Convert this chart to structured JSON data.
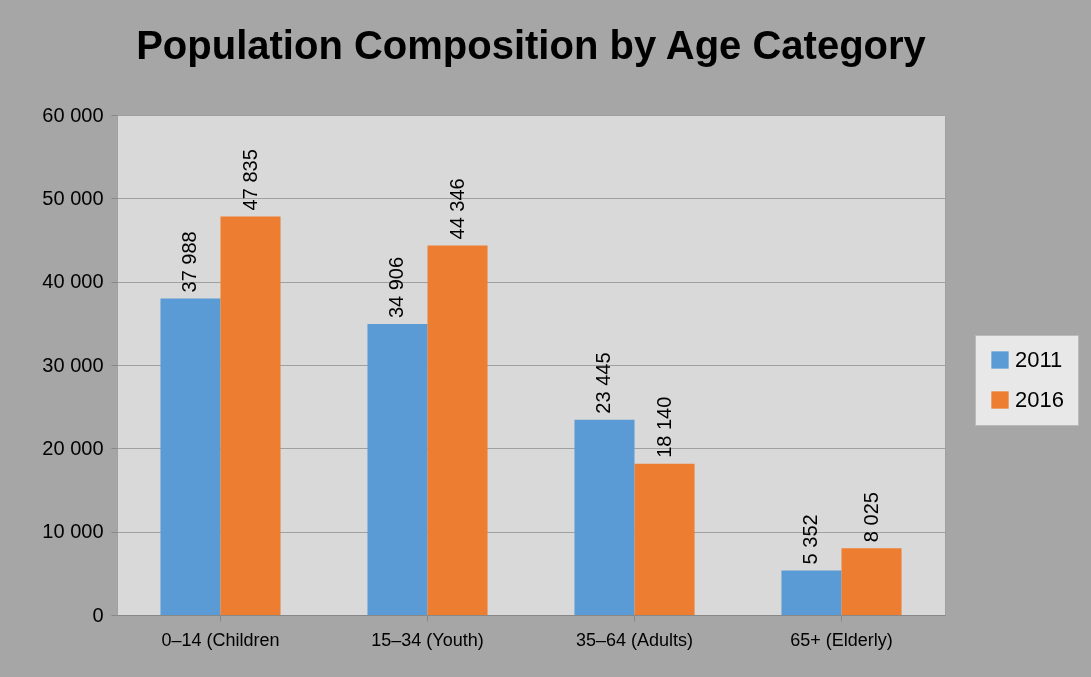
{
  "chart_data": {
    "type": "bar",
    "title": "Population Composition by Age Category",
    "categories": [
      "0–14 (Children",
      "15–34 (Youth)",
      "35–64 (Adults)",
      "65+ (Elderly)"
    ],
    "series": [
      {
        "name": "2011",
        "color": "#5b9bd5",
        "values": [
          37988,
          34906,
          23445,
          5352
        ],
        "value_labels": [
          "37 988",
          "34 906",
          "23 445",
          "5 352"
        ]
      },
      {
        "name": "2016",
        "color": "#ed7d31",
        "values": [
          47835,
          44346,
          18140,
          8025
        ],
        "value_labels": [
          "47 835",
          "44 346",
          "18 140",
          "8 025"
        ]
      }
    ],
    "ylim": [
      0,
      60000
    ],
    "yticks": [
      {
        "value": 0,
        "label": "0"
      },
      {
        "value": 10000,
        "label": "10 000"
      },
      {
        "value": 20000,
        "label": "20 000"
      },
      {
        "value": 30000,
        "label": "30 000"
      },
      {
        "value": 40000,
        "label": "40 000"
      },
      {
        "value": 50000,
        "label": "50 000"
      },
      {
        "value": 60000,
        "label": "60 000"
      }
    ],
    "grid": "y",
    "legend": "right"
  }
}
